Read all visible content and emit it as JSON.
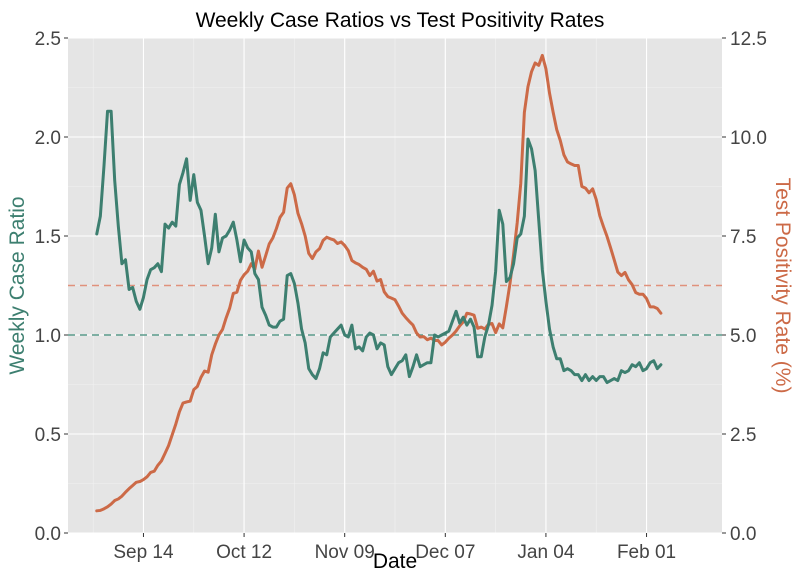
{
  "chart_data": {
    "type": "line",
    "title": "Weekly Case Ratios vs Test Positivity Rates",
    "xlabel": "Date",
    "ylabel_left": "Weekly Case Ratio",
    "ylabel_right": "Test Positivity Rate (%)",
    "x_ticks": [
      "Sep 14",
      "Oct 12",
      "Nov 09",
      "Dec 07",
      "Jan 04",
      "Feb 01"
    ],
    "x_tick_days": [
      14,
      42,
      70,
      98,
      126,
      154
    ],
    "ylim_left": [
      0,
      2.5
    ],
    "yticks_left": [
      "0.0",
      "0.5",
      "1.0",
      "1.5",
      "2.0",
      "2.5"
    ],
    "ylim_right": [
      0,
      12.5
    ],
    "yticks_right": [
      "0.0",
      "2.5",
      "5.0",
      "7.5",
      "10.0",
      "12.5"
    ],
    "xlim_days": [
      -7,
      175
    ],
    "grid": true,
    "legend": "none",
    "reference_lines": [
      {
        "axis": "left",
        "value": 1.0,
        "color": "#5b9b8c"
      },
      {
        "axis": "right",
        "value": 6.25,
        "color": "#e0917c"
      }
    ],
    "series": [
      {
        "axis": "left",
        "color": "#3d7f70",
        "points": [
          [
            1,
            1.51
          ],
          [
            2,
            1.6
          ],
          [
            3,
            1.85
          ],
          [
            4,
            2.13
          ],
          [
            5,
            2.13
          ],
          [
            6,
            1.78
          ],
          [
            7,
            1.55
          ],
          [
            8,
            1.36
          ],
          [
            9,
            1.38
          ],
          [
            10,
            1.23
          ],
          [
            11,
            1.24
          ],
          [
            12,
            1.17
          ],
          [
            13,
            1.13
          ],
          [
            14,
            1.19
          ],
          [
            15,
            1.28
          ],
          [
            16,
            1.33
          ],
          [
            17,
            1.34
          ],
          [
            18,
            1.36
          ],
          [
            19,
            1.32
          ],
          [
            20,
            1.56
          ],
          [
            21,
            1.54
          ],
          [
            22,
            1.57
          ],
          [
            23,
            1.55
          ],
          [
            24,
            1.76
          ],
          [
            25,
            1.82
          ],
          [
            26,
            1.89
          ],
          [
            27,
            1.68
          ],
          [
            28,
            1.81
          ],
          [
            29,
            1.67
          ],
          [
            30,
            1.63
          ],
          [
            31,
            1.5
          ],
          [
            32,
            1.36
          ],
          [
            33,
            1.44
          ],
          [
            34,
            1.61
          ],
          [
            35,
            1.42
          ],
          [
            36,
            1.49
          ],
          [
            37,
            1.5
          ],
          [
            38,
            1.53
          ],
          [
            39,
            1.57
          ],
          [
            40,
            1.48
          ],
          [
            41,
            1.37
          ],
          [
            42,
            1.48
          ],
          [
            43,
            1.44
          ],
          [
            44,
            1.42
          ],
          [
            45,
            1.31
          ],
          [
            46,
            1.28
          ],
          [
            47,
            1.14
          ],
          [
            48,
            1.1
          ],
          [
            49,
            1.05
          ],
          [
            50,
            1.04
          ],
          [
            51,
            1.04
          ],
          [
            52,
            1.07
          ],
          [
            53,
            1.08
          ],
          [
            54,
            1.3
          ],
          [
            55,
            1.31
          ],
          [
            56,
            1.26
          ],
          [
            57,
            1.16
          ],
          [
            58,
            1.03
          ],
          [
            59,
            0.96
          ],
          [
            60,
            0.83
          ],
          [
            61,
            0.8
          ],
          [
            62,
            0.78
          ],
          [
            63,
            0.83
          ],
          [
            64,
            0.91
          ],
          [
            65,
            0.9
          ],
          [
            66,
            0.99
          ],
          [
            67,
            1.01
          ],
          [
            68,
            1.03
          ],
          [
            69,
            1.05
          ],
          [
            70,
            1.0
          ],
          [
            71,
            0.99
          ],
          [
            72,
            1.05
          ],
          [
            73,
            0.93
          ],
          [
            74,
            0.94
          ],
          [
            75,
            0.92
          ],
          [
            76,
            0.99
          ],
          [
            77,
            1.01
          ],
          [
            78,
            1.0
          ],
          [
            79,
            0.93
          ],
          [
            80,
            0.96
          ],
          [
            81,
            0.95
          ],
          [
            82,
            0.84
          ],
          [
            83,
            0.8
          ],
          [
            84,
            0.83
          ],
          [
            85,
            0.86
          ],
          [
            86,
            0.87
          ],
          [
            87,
            0.9
          ],
          [
            88,
            0.79
          ],
          [
            89,
            0.84
          ],
          [
            90,
            0.9
          ],
          [
            91,
            0.84
          ],
          [
            92,
            0.85
          ],
          [
            93,
            0.86
          ],
          [
            94,
            0.86
          ],
          [
            95,
            1.0
          ],
          [
            96,
            0.99
          ],
          [
            97,
            1.0
          ],
          [
            98,
            1.01
          ],
          [
            99,
            1.02
          ],
          [
            100,
            1.07
          ],
          [
            101,
            1.12
          ],
          [
            102,
            1.06
          ],
          [
            103,
            1.09
          ],
          [
            104,
            1.05
          ],
          [
            105,
            1.08
          ],
          [
            106,
            1.04
          ],
          [
            107,
            0.89
          ],
          [
            108,
            0.89
          ],
          [
            109,
            0.99
          ],
          [
            110,
            1.05
          ],
          [
            111,
            1.15
          ],
          [
            112,
            1.32
          ],
          [
            113,
            1.63
          ],
          [
            114,
            1.56
          ],
          [
            115,
            1.27
          ],
          [
            116,
            1.29
          ],
          [
            117,
            1.36
          ],
          [
            118,
            1.49
          ],
          [
            119,
            1.51
          ],
          [
            120,
            1.6
          ],
          [
            121,
            1.99
          ],
          [
            122,
            1.94
          ],
          [
            123,
            1.83
          ],
          [
            124,
            1.58
          ],
          [
            125,
            1.33
          ],
          [
            126,
            1.17
          ],
          [
            127,
            1.03
          ],
          [
            128,
            0.94
          ],
          [
            129,
            0.88
          ],
          [
            130,
            0.88
          ],
          [
            131,
            0.82
          ],
          [
            132,
            0.83
          ],
          [
            133,
            0.82
          ],
          [
            134,
            0.8
          ],
          [
            135,
            0.8
          ],
          [
            136,
            0.77
          ],
          [
            137,
            0.8
          ],
          [
            138,
            0.77
          ],
          [
            139,
            0.79
          ],
          [
            140,
            0.77
          ],
          [
            141,
            0.79
          ],
          [
            142,
            0.79
          ],
          [
            143,
            0.76
          ],
          [
            144,
            0.77
          ],
          [
            145,
            0.78
          ],
          [
            146,
            0.77
          ],
          [
            147,
            0.82
          ],
          [
            148,
            0.81
          ],
          [
            149,
            0.82
          ],
          [
            150,
            0.85
          ],
          [
            151,
            0.84
          ],
          [
            152,
            0.86
          ],
          [
            153,
            0.82
          ],
          [
            154,
            0.83
          ],
          [
            155,
            0.86
          ],
          [
            156,
            0.87
          ],
          [
            157,
            0.83
          ],
          [
            158,
            0.85
          ]
        ]
      },
      {
        "axis": "right",
        "color": "#cc6a47",
        "points": [
          [
            1,
            0.56
          ],
          [
            2,
            0.57
          ],
          [
            3,
            0.61
          ],
          [
            4,
            0.66
          ],
          [
            5,
            0.73
          ],
          [
            6,
            0.82
          ],
          [
            7,
            0.86
          ],
          [
            8,
            0.93
          ],
          [
            9,
            1.03
          ],
          [
            10,
            1.12
          ],
          [
            11,
            1.2
          ],
          [
            12,
            1.28
          ],
          [
            13,
            1.3
          ],
          [
            14,
            1.35
          ],
          [
            15,
            1.42
          ],
          [
            16,
            1.53
          ],
          [
            17,
            1.56
          ],
          [
            18,
            1.71
          ],
          [
            19,
            1.82
          ],
          [
            20,
            2.01
          ],
          [
            21,
            2.21
          ],
          [
            22,
            2.48
          ],
          [
            23,
            2.75
          ],
          [
            24,
            3.06
          ],
          [
            25,
            3.28
          ],
          [
            26,
            3.31
          ],
          [
            27,
            3.33
          ],
          [
            28,
            3.62
          ],
          [
            29,
            3.7
          ],
          [
            30,
            3.93
          ],
          [
            31,
            4.09
          ],
          [
            32,
            4.06
          ],
          [
            33,
            4.5
          ],
          [
            34,
            4.77
          ],
          [
            35,
            5.0
          ],
          [
            36,
            5.14
          ],
          [
            37,
            5.43
          ],
          [
            38,
            5.68
          ],
          [
            39,
            6.05
          ],
          [
            40,
            6.08
          ],
          [
            41,
            6.38
          ],
          [
            42,
            6.52
          ],
          [
            43,
            6.61
          ],
          [
            44,
            6.8
          ],
          [
            45,
            6.66
          ],
          [
            46,
            7.12
          ],
          [
            47,
            6.71
          ],
          [
            48,
            7.0
          ],
          [
            49,
            7.3
          ],
          [
            50,
            7.45
          ],
          [
            51,
            7.69
          ],
          [
            52,
            7.97
          ],
          [
            53,
            8.1
          ],
          [
            54,
            8.71
          ],
          [
            55,
            8.82
          ],
          [
            56,
            8.54
          ],
          [
            57,
            8.07
          ],
          [
            58,
            7.81
          ],
          [
            59,
            7.5
          ],
          [
            60,
            7.06
          ],
          [
            61,
            6.93
          ],
          [
            62,
            7.1
          ],
          [
            63,
            7.18
          ],
          [
            64,
            7.39
          ],
          [
            65,
            7.47
          ],
          [
            66,
            7.43
          ],
          [
            67,
            7.4
          ],
          [
            68,
            7.31
          ],
          [
            69,
            7.35
          ],
          [
            70,
            7.26
          ],
          [
            71,
            7.13
          ],
          [
            72,
            6.88
          ],
          [
            73,
            6.82
          ],
          [
            74,
            6.78
          ],
          [
            75,
            6.71
          ],
          [
            76,
            6.66
          ],
          [
            77,
            6.5
          ],
          [
            78,
            6.61
          ],
          [
            79,
            6.36
          ],
          [
            80,
            6.4
          ],
          [
            81,
            6.09
          ],
          [
            82,
            5.97
          ],
          [
            83,
            5.93
          ],
          [
            84,
            5.89
          ],
          [
            85,
            5.73
          ],
          [
            86,
            5.55
          ],
          [
            87,
            5.44
          ],
          [
            88,
            5.34
          ],
          [
            89,
            5.25
          ],
          [
            90,
            5.05
          ],
          [
            91,
            4.95
          ],
          [
            92,
            4.96
          ],
          [
            93,
            4.88
          ],
          [
            94,
            4.92
          ],
          [
            95,
            4.86
          ],
          [
            96,
            4.86
          ],
          [
            97,
            4.75
          ],
          [
            98,
            4.82
          ],
          [
            99,
            4.92
          ],
          [
            100,
            5.0
          ],
          [
            101,
            5.1
          ],
          [
            102,
            5.23
          ],
          [
            103,
            5.33
          ],
          [
            104,
            5.55
          ],
          [
            105,
            5.53
          ],
          [
            106,
            5.5
          ],
          [
            107,
            5.17
          ],
          [
            108,
            5.2
          ],
          [
            109,
            5.15
          ],
          [
            110,
            5.27
          ],
          [
            111,
            5.29
          ],
          [
            112,
            5.06
          ],
          [
            113,
            5.28
          ],
          [
            114,
            5.18
          ],
          [
            115,
            5.72
          ],
          [
            116,
            6.3
          ],
          [
            117,
            7.03
          ],
          [
            118,
            7.83
          ],
          [
            119,
            8.83
          ],
          [
            120,
            10.62
          ],
          [
            121,
            11.27
          ],
          [
            122,
            11.65
          ],
          [
            123,
            11.87
          ],
          [
            124,
            11.81
          ],
          [
            125,
            12.06
          ],
          [
            126,
            11.72
          ],
          [
            127,
            11.11
          ],
          [
            128,
            10.63
          ],
          [
            129,
            10.19
          ],
          [
            130,
            9.91
          ],
          [
            131,
            9.55
          ],
          [
            132,
            9.37
          ],
          [
            133,
            9.32
          ],
          [
            134,
            9.28
          ],
          [
            135,
            9.28
          ],
          [
            136,
            8.75
          ],
          [
            137,
            8.71
          ],
          [
            138,
            8.59
          ],
          [
            139,
            8.69
          ],
          [
            140,
            8.42
          ],
          [
            141,
            8.01
          ],
          [
            142,
            7.74
          ],
          [
            143,
            7.49
          ],
          [
            144,
            7.2
          ],
          [
            145,
            6.9
          ],
          [
            146,
            6.59
          ],
          [
            147,
            6.5
          ],
          [
            148,
            6.58
          ],
          [
            149,
            6.39
          ],
          [
            150,
            6.27
          ],
          [
            151,
            6.07
          ],
          [
            152,
            6.03
          ],
          [
            153,
            6.03
          ],
          [
            154,
            5.92
          ],
          [
            155,
            5.71
          ],
          [
            156,
            5.71
          ],
          [
            157,
            5.67
          ],
          [
            158,
            5.55
          ]
        ]
      }
    ]
  }
}
